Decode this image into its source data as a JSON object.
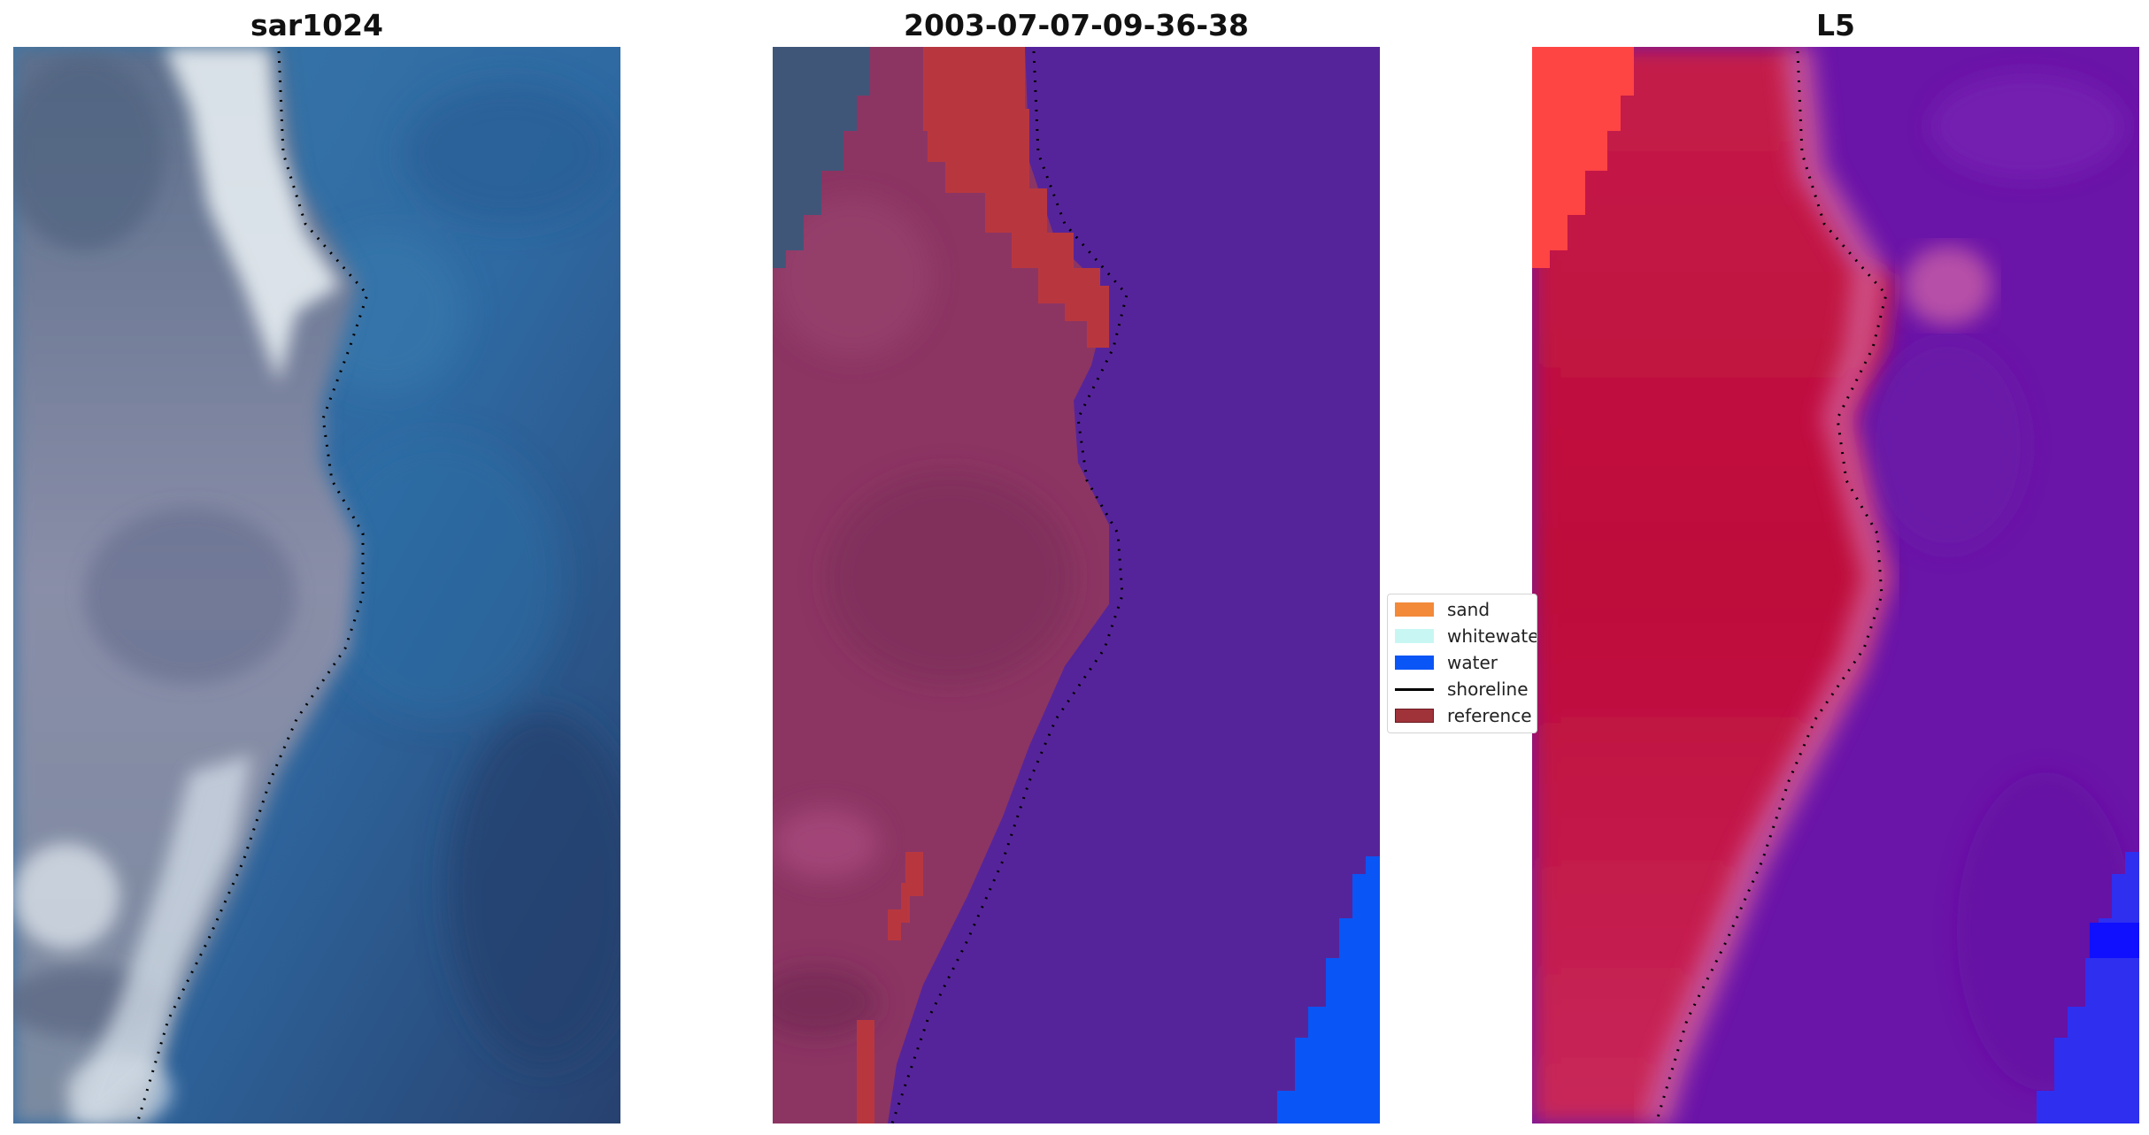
{
  "panels": [
    {
      "title": "sar1024"
    },
    {
      "title": "2003-07-07-09-36-38"
    },
    {
      "title": "L5"
    }
  ],
  "legend": {
    "placement": "center",
    "items": [
      {
        "label": "sand",
        "color": "#f28a3a",
        "kind": "patch"
      },
      {
        "label": "whitewater",
        "color": "#c8f7f3",
        "kind": "patch"
      },
      {
        "label": "water",
        "color": "#0a55f5",
        "kind": "patch"
      },
      {
        "label": "shoreline",
        "color": "#000000",
        "kind": "line"
      },
      {
        "label": "reference",
        "color": "#a0333a",
        "kind": "patch"
      }
    ]
  },
  "colors": {
    "deep_water": "#2a4f86",
    "shallow_water": "#2f6aa3",
    "land_gray": "#7f8aa5",
    "surf_white": "#e7eef2",
    "class_land": "#8c3563",
    "class_reference": "#b8373f",
    "class_ocean": "#56249a",
    "class_water": "#0a55f5",
    "l5_land": "#c01a45",
    "l5_sand": "#ff4444",
    "l5_ocean": "#6b14a8",
    "l5_blue": "#2f2ff0"
  }
}
